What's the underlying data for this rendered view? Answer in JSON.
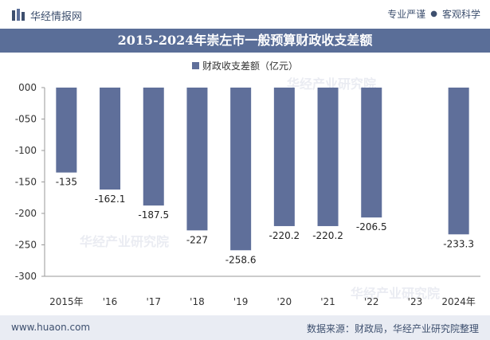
{
  "header": {
    "brand_name": "华经情报网",
    "slogan_left": "专业严谨",
    "slogan_right": "客观科学"
  },
  "watermark": "华经产业研究院",
  "chart_data": {
    "type": "bar",
    "title": "2015-2024年崇左市一般预算财政收支差额",
    "categories": [
      "2015年",
      "'16",
      "'17",
      "'18",
      "'19",
      "'20",
      "'21",
      "'22",
      "'23",
      "2024年"
    ],
    "series": [
      {
        "name": "财政收支差额（亿元）",
        "values": [
          -135,
          -162.1,
          -187.5,
          -227,
          -258.6,
          -220.2,
          -220.2,
          -206.5,
          null,
          -233.3
        ]
      }
    ],
    "data_labels": [
      "-135",
      "-162.1",
      "-187.5",
      "-227",
      "-258.6",
      "-220.2",
      "-220.2",
      "-206.5",
      "",
      "-233.3"
    ],
    "yticks": [
      "000",
      "-050",
      "-100",
      "-150",
      "-200",
      "-250",
      "-300"
    ],
    "ytick_values": [
      0,
      -50,
      -100,
      -150,
      -200,
      -250,
      -300
    ],
    "ylim": [
      -300,
      0
    ],
    "bar_color": "#5f6f9a",
    "legend_position": "top-center",
    "grid": false
  },
  "footer": {
    "website": "www.huaon.com",
    "source": "数据来源：财政局，华经产业研究院整理"
  }
}
